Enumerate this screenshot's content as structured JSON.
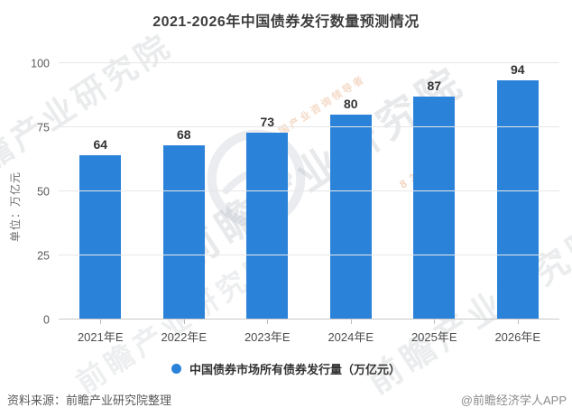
{
  "title": "2021-2026年中国债券发行数量预测情况",
  "chart_data": {
    "type": "bar",
    "title": "2021-2026年中国债券发行数量预测情况",
    "categories": [
      "2021年E",
      "2022年E",
      "2023年E",
      "2024年E",
      "2025年E",
      "2026年E"
    ],
    "series": [
      {
        "name": "中国债券市场所有债券发行量（万亿元）",
        "values": [
          64,
          68,
          73,
          80,
          87,
          94
        ]
      }
    ],
    "xlabel": "",
    "ylabel": "单位：万亿元",
    "ylim": [
      0,
      100
    ],
    "yticks": [
      0,
      25,
      50,
      75,
      100
    ],
    "grid": true,
    "legend_position": "bottom",
    "bar_color": "#2b82d9",
    "value_labels": [
      64,
      68,
      73,
      80,
      87,
      94
    ]
  },
  "footer": {
    "source": "资料来源：前瞻产业研究院整理",
    "credit": "@前瞻经济学人APP"
  },
  "watermark": {
    "text": "前瞻产业研究院",
    "digits": "839599",
    "slogan": "中国产业咨询领导者"
  }
}
